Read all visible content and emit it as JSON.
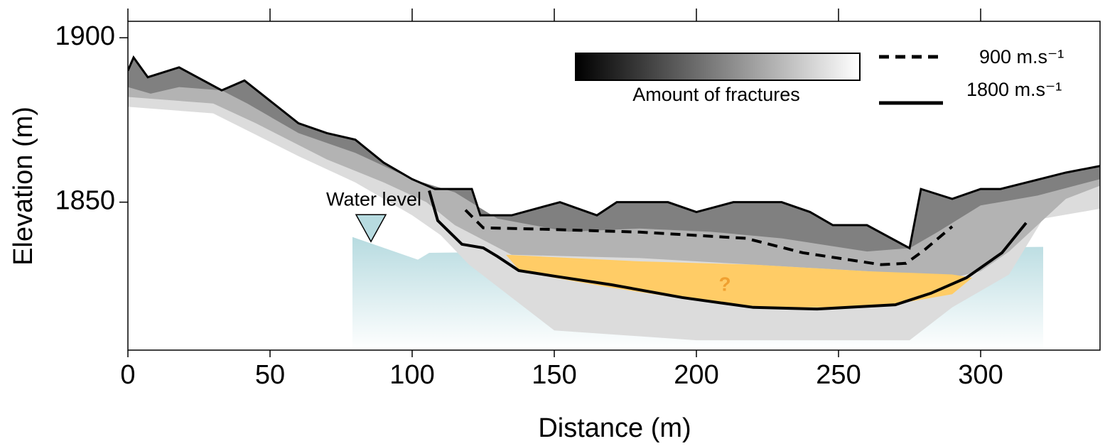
{
  "chart_data": {
    "type": "cross-section",
    "xlabel": "Distance (m)",
    "ylabel": "Elevation (m)",
    "xlim": [
      0,
      342
    ],
    "ylim": [
      1805,
      1905
    ],
    "xticks": [
      0,
      50,
      100,
      150,
      200,
      250,
      300
    ],
    "yticks": [
      1850,
      1900
    ],
    "water": {
      "color": "#b7dbe0",
      "x": [
        79,
        102,
        106,
        322,
        322,
        79
      ],
      "values": [
        1839.4,
        1832.5,
        1834.6,
        1836.4,
        1805,
        1805
      ]
    },
    "water_level": {
      "label": "Water level",
      "x": 85.5,
      "y": 1838
    },
    "layers": [
      {
        "color": "#dcdcdc",
        "x": [
          0,
          2,
          7,
          18,
          33,
          41,
          60,
          70,
          80,
          90,
          100,
          108,
          121,
          124,
          135,
          152,
          165,
          172,
          190,
          200,
          213,
          230,
          240,
          248,
          260,
          275,
          279,
          290,
          300,
          307,
          330,
          342,
          342,
          322,
          310,
          290,
          275,
          200,
          150,
          120,
          110,
          100,
          80,
          60,
          30,
          0
        ],
        "values": [
          1890,
          1894,
          1888,
          1891,
          1884,
          1887,
          1874,
          1871,
          1869,
          1862,
          1857,
          1854,
          1854,
          1846,
          1846,
          1850,
          1846,
          1850,
          1850,
          1847,
          1850,
          1850,
          1847,
          1843,
          1843,
          1836,
          1854,
          1851,
          1854,
          1854,
          1859,
          1861,
          1848,
          1845,
          1828,
          1818,
          1808,
          1808,
          1811,
          1831,
          1840,
          1846,
          1856,
          1864,
          1877,
          1879
        ]
      },
      {
        "color": "#b3b3b3",
        "x": [
          0,
          2,
          7,
          18,
          33,
          41,
          60,
          70,
          80,
          90,
          100,
          108,
          121,
          124,
          135,
          152,
          165,
          172,
          190,
          200,
          213,
          230,
          240,
          248,
          260,
          275,
          279,
          290,
          300,
          307,
          330,
          342,
          342,
          330,
          320,
          310,
          300,
          290,
          260,
          220,
          180,
          135,
          115,
          105,
          90,
          70,
          45,
          30,
          0
        ],
        "values": [
          1890,
          1894,
          1888,
          1891,
          1884,
          1887,
          1874,
          1871,
          1869,
          1862,
          1857,
          1854,
          1854,
          1846,
          1846,
          1850,
          1846,
          1850,
          1850,
          1847,
          1850,
          1850,
          1847,
          1843,
          1843,
          1836,
          1854,
          1851,
          1854,
          1854,
          1859,
          1861,
          1855,
          1851,
          1843,
          1835,
          1829,
          1827,
          1829,
          1831,
          1833,
          1834,
          1843,
          1850,
          1856,
          1863,
          1874,
          1880,
          1882
        ]
      },
      {
        "color": "#808080",
        "x": [
          0,
          2,
          7,
          18,
          33,
          41,
          60,
          70,
          80,
          90,
          100,
          108,
          121,
          124,
          135,
          152,
          165,
          172,
          190,
          200,
          213,
          230,
          240,
          248,
          260,
          275,
          279,
          290,
          300,
          307,
          330,
          342,
          342,
          320,
          300,
          285,
          275,
          260,
          230,
          205,
          180,
          155,
          130,
          115,
          100,
          80,
          60,
          42,
          33,
          18,
          8,
          0
        ],
        "values": [
          1890,
          1894,
          1888,
          1891,
          1884,
          1887,
          1874,
          1871,
          1869,
          1862,
          1857,
          1854,
          1854,
          1846,
          1846,
          1850,
          1846,
          1850,
          1850,
          1847,
          1850,
          1850,
          1847,
          1843,
          1843,
          1836,
          1854,
          1851,
          1854,
          1854,
          1859,
          1861,
          1857,
          1852,
          1849,
          1841,
          1836,
          1835,
          1839,
          1841,
          1842,
          1841,
          1845,
          1853,
          1857,
          1865,
          1871,
          1880,
          1884,
          1885,
          1883,
          1885
        ]
      },
      {
        "color": "#ffcc66",
        "x": [
          133,
          180,
          220,
          260,
          290,
          297,
          290,
          270,
          245,
          225,
          200,
          170,
          150,
          138
        ],
        "values": [
          1834,
          1832,
          1831,
          1829,
          1828,
          1827,
          1822,
          1819,
          1818,
          1818,
          1820,
          1824,
          1827,
          1829
        ]
      }
    ],
    "surface": {
      "color": "#000000",
      "x": [
        0,
        2,
        7,
        18,
        33,
        41,
        60,
        70,
        80,
        90,
        100,
        108,
        121,
        124,
        135,
        152,
        165,
        172,
        190,
        200,
        213,
        230,
        240,
        248,
        260,
        275,
        279,
        290,
        300,
        307,
        330,
        342
      ],
      "values": [
        1890,
        1894,
        1888,
        1891,
        1884,
        1887,
        1874,
        1871,
        1869,
        1862,
        1857,
        1854,
        1854,
        1846,
        1846,
        1850,
        1846,
        1850,
        1850,
        1847,
        1850,
        1850,
        1847,
        1843,
        1843,
        1836,
        1854,
        1851,
        1854,
        1854,
        1859,
        1861
      ]
    },
    "unknown_label": "?",
    "fracture_legend": "Amount of fractures",
    "lines": [
      {
        "name": "900 m.s⁻¹",
        "color": "#000000",
        "dashed": true,
        "x": [
          118.75,
          125,
          145,
          180,
          217.5,
          237.5,
          265,
          273.75,
          280,
          290
        ],
        "values": [
          1847.6,
          1842.2,
          1841.8,
          1840.9,
          1839,
          1834.6,
          1831,
          1831.4,
          1835.3,
          1842.6
        ]
      },
      {
        "name": "1800 m.s⁻¹",
        "color": "#000000",
        "dashed": false,
        "x": [
          106,
          109,
          117.5,
          125,
          130,
          137.5,
          150,
          170,
          195,
          220,
          242.5,
          270,
          282.5,
          295,
          307.5,
          316
        ],
        "values": [
          1853.5,
          1844.4,
          1837.2,
          1836.1,
          1833.5,
          1829.2,
          1827.5,
          1824.9,
          1821,
          1818,
          1817.5,
          1818.8,
          1822.3,
          1827,
          1834.6,
          1843.7
        ]
      }
    ]
  }
}
